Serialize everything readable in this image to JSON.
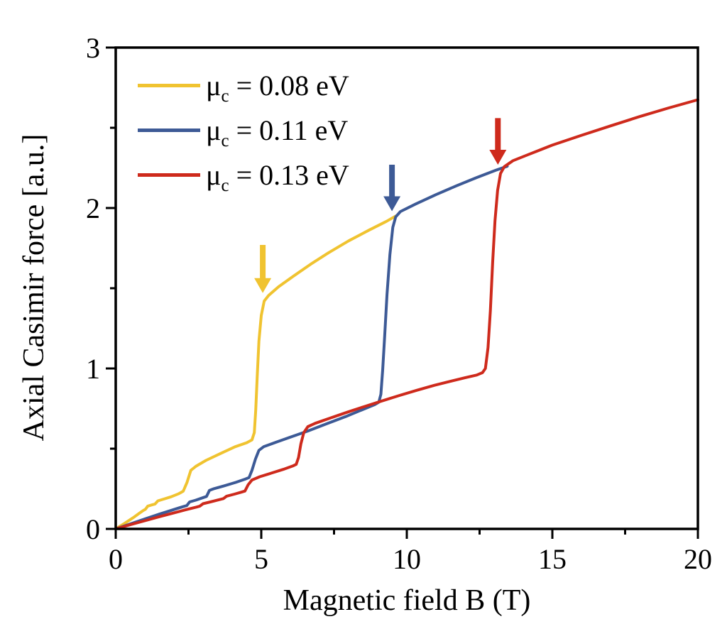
{
  "figure_background": "#ffffff",
  "chart_data": {
    "type": "line",
    "title": "",
    "xlabel": "Magnetic field B (T)",
    "ylabel": "Axial Casimir force [a.u.]",
    "xlim": [
      0,
      20
    ],
    "ylim": [
      0,
      3
    ],
    "x_major_ticks": [
      0,
      5,
      10,
      15,
      20
    ],
    "x_minor_ticks": [
      2.5,
      7.5,
      12.5,
      17.5
    ],
    "y_major_ticks": [
      0,
      1,
      2,
      3
    ],
    "y_minor_ticks": [
      0.5,
      1.5,
      2.5
    ],
    "grid": false,
    "legend_position": "upper-left-inside",
    "frame": "full-box",
    "axis_color": "#000000",
    "series": [
      {
        "name": "mu_c = 0.08 eV",
        "label_mu": "μ",
        "label_sub": "c",
        "label_rest": " = 0.08 eV",
        "color": "#F0C330",
        "transition_B_T": 4.9,
        "points": [
          [
            0,
            0
          ],
          [
            0.3,
            0.034
          ],
          [
            0.6,
            0.07
          ],
          [
            0.8,
            0.096
          ],
          [
            0.95,
            0.115
          ],
          [
            1.02,
            0.122
          ],
          [
            1.1,
            0.142
          ],
          [
            1.25,
            0.15
          ],
          [
            1.35,
            0.155
          ],
          [
            1.45,
            0.175
          ],
          [
            1.65,
            0.186
          ],
          [
            1.9,
            0.2
          ],
          [
            2.15,
            0.218
          ],
          [
            2.32,
            0.235
          ],
          [
            2.45,
            0.29
          ],
          [
            2.58,
            0.365
          ],
          [
            2.75,
            0.39
          ],
          [
            3.1,
            0.427
          ],
          [
            3.6,
            0.47
          ],
          [
            4.1,
            0.512
          ],
          [
            4.5,
            0.537
          ],
          [
            4.68,
            0.555
          ],
          [
            4.76,
            0.6
          ],
          [
            4.81,
            0.74
          ],
          [
            4.86,
            0.95
          ],
          [
            4.92,
            1.17
          ],
          [
            5.0,
            1.33
          ],
          [
            5.1,
            1.42
          ],
          [
            5.25,
            1.455
          ],
          [
            5.6,
            1.51
          ],
          [
            6.1,
            1.575
          ],
          [
            6.7,
            1.65
          ],
          [
            7.3,
            1.72
          ],
          [
            8.0,
            1.795
          ],
          [
            8.7,
            1.862
          ],
          [
            9.3,
            1.917
          ],
          [
            9.62,
            1.95
          ]
        ]
      },
      {
        "name": "mu_c = 0.11 eV",
        "label_mu": "μ",
        "label_sub": "c",
        "label_rest": " = 0.11 eV",
        "color": "#3D5A96",
        "transition_B_T": 9.3,
        "points": [
          [
            0,
            0
          ],
          [
            0.5,
            0.031
          ],
          [
            1.0,
            0.062
          ],
          [
            1.5,
            0.092
          ],
          [
            2.0,
            0.121
          ],
          [
            2.3,
            0.138
          ],
          [
            2.44,
            0.145
          ],
          [
            2.54,
            0.168
          ],
          [
            2.75,
            0.179
          ],
          [
            3.02,
            0.196
          ],
          [
            3.12,
            0.202
          ],
          [
            3.22,
            0.24
          ],
          [
            3.38,
            0.251
          ],
          [
            3.72,
            0.268
          ],
          [
            4.12,
            0.29
          ],
          [
            4.45,
            0.31
          ],
          [
            4.58,
            0.32
          ],
          [
            4.68,
            0.365
          ],
          [
            4.8,
            0.435
          ],
          [
            4.92,
            0.49
          ],
          [
            5.08,
            0.512
          ],
          [
            5.5,
            0.54
          ],
          [
            6.0,
            0.572
          ],
          [
            6.6,
            0.61
          ],
          [
            7.2,
            0.652
          ],
          [
            7.9,
            0.7
          ],
          [
            8.5,
            0.745
          ],
          [
            8.9,
            0.775
          ],
          [
            9.04,
            0.79
          ],
          [
            9.11,
            0.84
          ],
          [
            9.17,
            0.99
          ],
          [
            9.24,
            1.2
          ],
          [
            9.32,
            1.46
          ],
          [
            9.42,
            1.71
          ],
          [
            9.52,
            1.88
          ],
          [
            9.62,
            1.945
          ],
          [
            9.78,
            1.978
          ],
          [
            10.3,
            2.025
          ],
          [
            11.0,
            2.083
          ],
          [
            11.7,
            2.138
          ],
          [
            12.4,
            2.19
          ],
          [
            13.05,
            2.235
          ],
          [
            13.45,
            2.26
          ]
        ]
      },
      {
        "name": "mu_c = 0.13 eV",
        "label_mu": "μ",
        "label_sub": "c",
        "label_rest": " = 0.13 eV",
        "color": "#CE2A1C",
        "transition_B_T": 12.9,
        "points": [
          [
            0,
            0
          ],
          [
            0.5,
            0.026
          ],
          [
            1.0,
            0.051
          ],
          [
            1.5,
            0.076
          ],
          [
            2.0,
            0.1
          ],
          [
            2.4,
            0.119
          ],
          [
            2.77,
            0.136
          ],
          [
            2.89,
            0.142
          ],
          [
            3.0,
            0.157
          ],
          [
            3.25,
            0.168
          ],
          [
            3.58,
            0.183
          ],
          [
            3.7,
            0.189
          ],
          [
            3.81,
            0.204
          ],
          [
            4.08,
            0.217
          ],
          [
            4.32,
            0.229
          ],
          [
            4.44,
            0.236
          ],
          [
            4.55,
            0.275
          ],
          [
            4.68,
            0.305
          ],
          [
            4.95,
            0.325
          ],
          [
            5.35,
            0.348
          ],
          [
            5.75,
            0.371
          ],
          [
            6.08,
            0.392
          ],
          [
            6.2,
            0.402
          ],
          [
            6.28,
            0.445
          ],
          [
            6.36,
            0.53
          ],
          [
            6.46,
            0.6
          ],
          [
            6.6,
            0.637
          ],
          [
            6.85,
            0.658
          ],
          [
            7.35,
            0.69
          ],
          [
            7.95,
            0.727
          ],
          [
            8.55,
            0.763
          ],
          [
            9.15,
            0.798
          ],
          [
            9.75,
            0.832
          ],
          [
            10.35,
            0.864
          ],
          [
            10.95,
            0.895
          ],
          [
            11.5,
            0.92
          ],
          [
            12.0,
            0.942
          ],
          [
            12.4,
            0.959
          ],
          [
            12.6,
            0.974
          ],
          [
            12.7,
            1.0
          ],
          [
            12.79,
            1.13
          ],
          [
            12.87,
            1.36
          ],
          [
            12.95,
            1.66
          ],
          [
            13.03,
            1.92
          ],
          [
            13.12,
            2.11
          ],
          [
            13.22,
            2.215
          ],
          [
            13.35,
            2.258
          ],
          [
            13.65,
            2.295
          ],
          [
            14.2,
            2.335
          ],
          [
            15.0,
            2.392
          ],
          [
            16.0,
            2.453
          ],
          [
            17.0,
            2.512
          ],
          [
            18.0,
            2.57
          ],
          [
            19.0,
            2.624
          ],
          [
            20.0,
            2.675
          ]
        ]
      }
    ],
    "arrows": [
      {
        "series": "mu_c = 0.08 eV",
        "color": "#F0C330",
        "x": 5.05,
        "y_tail": 1.77,
        "y_tip": 1.47
      },
      {
        "series": "mu_c = 0.11 eV",
        "color": "#3D5A96",
        "x": 9.49,
        "y_tail": 2.27,
        "y_tip": 1.98
      },
      {
        "series": "mu_c = 0.13 eV",
        "color": "#CE2A1C",
        "x": 13.13,
        "y_tail": 2.56,
        "y_tip": 2.27
      }
    ]
  }
}
